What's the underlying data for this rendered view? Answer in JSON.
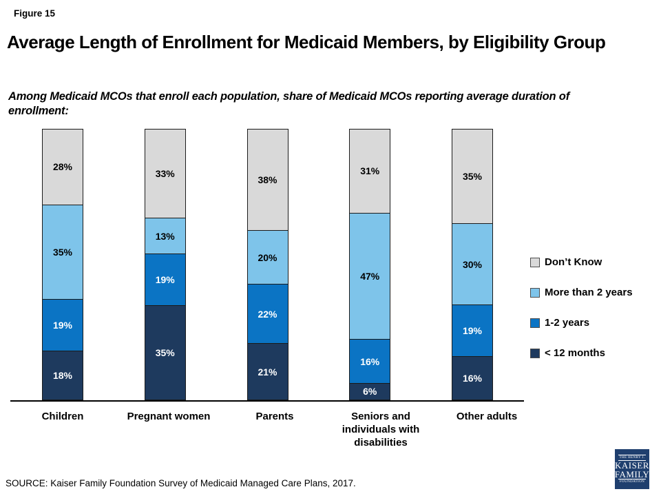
{
  "header": {
    "figure_label": "Figure 15",
    "title": "Average Length of Enrollment for Medicaid Members, by Eligibility Group",
    "subtitle": "Among Medicaid MCOs that enroll each population, share of Medicaid MCOs reporting average duration of enrollment:"
  },
  "chart_data": {
    "type": "bar",
    "stacked": true,
    "orientation": "vertical",
    "value_suffix": "%",
    "ylim": [
      0,
      100
    ],
    "grid": false,
    "legend_position": "right",
    "categories": [
      "Children",
      "Pregnant women",
      "Parents",
      "Seniors and individuals with disabilities",
      "Other adults"
    ],
    "series": [
      {
        "name": "< 12 months",
        "color": "#1E3A5E",
        "label_color": "#FFFFFF",
        "values": [
          18,
          35,
          21,
          6,
          16
        ]
      },
      {
        "name": "1-2 years",
        "color": "#0B74C4",
        "label_color": "#FFFFFF",
        "values": [
          19,
          19,
          22,
          16,
          19
        ]
      },
      {
        "name": "More than 2 years",
        "color": "#7EC4EA",
        "label_color": "#000000",
        "values": [
          35,
          13,
          20,
          47,
          30
        ]
      },
      {
        "name": "Don’t Know",
        "color": "#D9D9D9",
        "label_color": "#000000",
        "values": [
          28,
          33,
          38,
          31,
          35
        ]
      }
    ],
    "legend": [
      {
        "label": "Don’t Know",
        "color": "#D9D9D9"
      },
      {
        "label": "More than 2 years",
        "color": "#7EC4EA"
      },
      {
        "label": "1-2 years",
        "color": "#0B74C4"
      },
      {
        "label": "< 12 months",
        "color": "#1E3A5E"
      }
    ]
  },
  "footer": {
    "source": "SOURCE: Kaiser Family Foundation Survey of Medicaid Managed Care Plans, 2017."
  },
  "logo": {
    "top_text": "THE HENRY J.",
    "name_line1": "KAISER",
    "name_line2": "FAMILY",
    "bottom_text": "FOUNDATION",
    "background": "#1F3F6E"
  }
}
